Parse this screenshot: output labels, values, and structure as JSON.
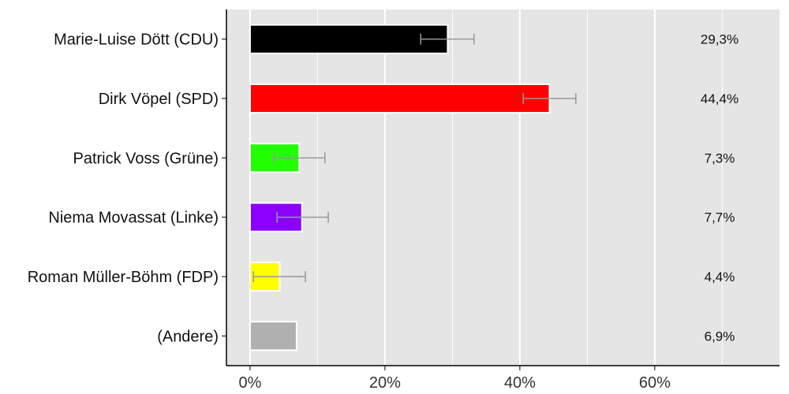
{
  "chart_data": {
    "type": "bar",
    "orientation": "horizontal",
    "categories": [
      "Marie-Luise Dött (CDU)",
      "Dirk Vöpel (SPD)",
      "Patrick Voss (Grüne)",
      "Niema Movassat (Linke)",
      "Roman Müller-Böhm (FDP)",
      "(Andere)"
    ],
    "values": [
      29.3,
      44.4,
      7.3,
      7.7,
      4.4,
      6.9
    ],
    "value_labels": [
      "29,3%",
      "44,4%",
      "7,3%",
      "7,7%",
      "4,4%",
      "6,9%"
    ],
    "colors": [
      "#000000",
      "#ff0000",
      "#22ff00",
      "#8b00ff",
      "#ffff00",
      "#b0b0b0"
    ],
    "error_bars": [
      [
        25.3,
        33.2
      ],
      [
        40.5,
        48.3
      ],
      [
        3.5,
        11.1
      ],
      [
        4.0,
        11.6
      ],
      [
        0.5,
        8.2
      ],
      null
    ],
    "xlim": [
      -3.5,
      78.5
    ],
    "xticks": [
      0,
      20,
      40,
      60
    ],
    "xtick_labels": [
      "0%",
      "20%",
      "40%",
      "60%"
    ],
    "grid": true,
    "title": "",
    "xlabel": "",
    "ylabel": ""
  }
}
